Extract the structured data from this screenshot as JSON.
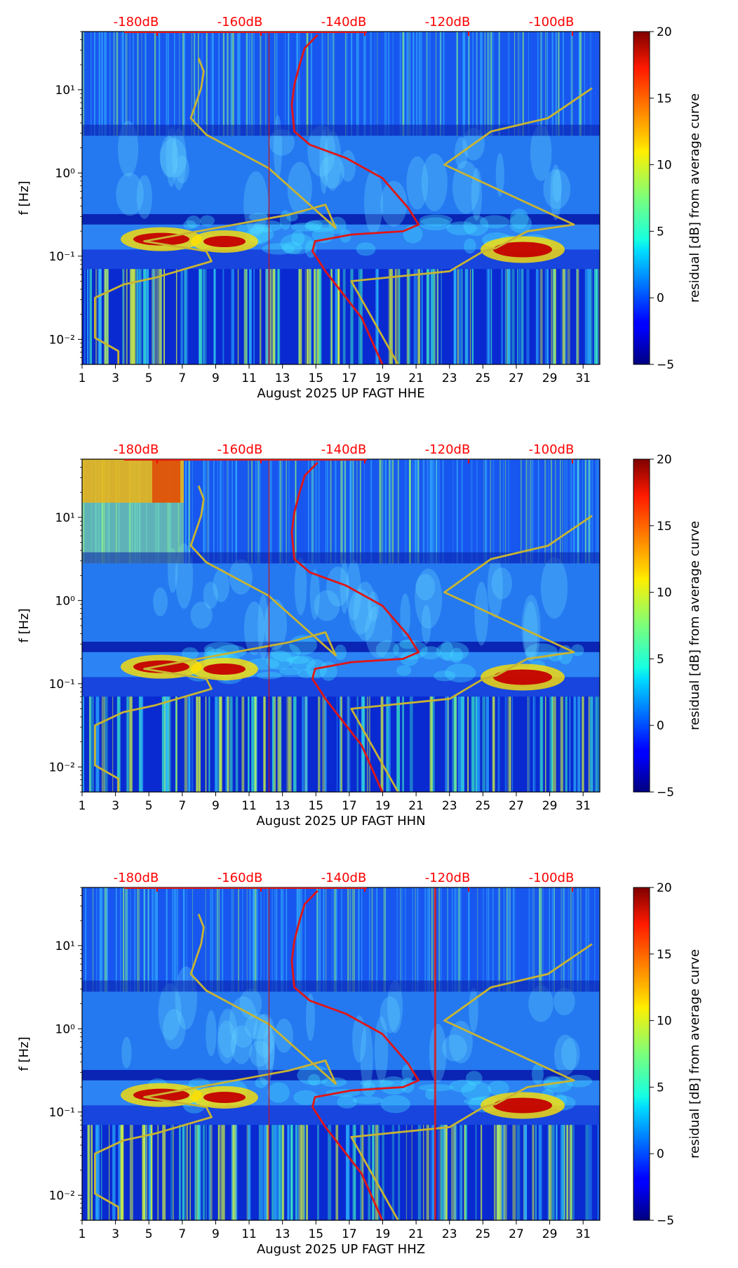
{
  "chart_data": [
    {
      "type": "heatmap",
      "title": "",
      "xlabel": "August 2025 UP FAGT  HHE",
      "ylabel": "f [Hz]",
      "x_ticks": [
        "1",
        "3",
        "5",
        "7",
        "9",
        "11",
        "13",
        "15",
        "17",
        "19",
        "21",
        "23",
        "25",
        "27",
        "29",
        "31"
      ],
      "x_range": [
        1,
        32
      ],
      "y_ticks": [
        "10⁻²",
        "10⁻¹",
        "10⁰",
        "10¹"
      ],
      "y_range_hz": [
        0.005,
        50
      ],
      "top_labels": [
        "-180dB",
        "-160dB",
        "-140dB",
        "-120dB",
        "-100dB"
      ],
      "top_label_color": "#ff0000",
      "colorbar": {
        "label": "residual [dB] from average curve",
        "ticks": [
          "20",
          "15",
          "10",
          "5",
          "0",
          "−5"
        ],
        "range": [
          -5,
          20
        ],
        "colormap": "jet"
      },
      "series": [
        {
          "name": "noise-model-curve",
          "color": "#c8b432"
        },
        {
          "name": "average-psd-curve",
          "color": "#e01515"
        }
      ]
    },
    {
      "type": "heatmap",
      "title": "",
      "xlabel": "August 2025 UP FAGT  HHN",
      "ylabel": "f [Hz]",
      "x_ticks": [
        "1",
        "3",
        "5",
        "7",
        "9",
        "11",
        "13",
        "15",
        "17",
        "19",
        "21",
        "23",
        "25",
        "27",
        "29",
        "31"
      ],
      "x_range": [
        1,
        32
      ],
      "y_ticks": [
        "10⁻²",
        "10⁻¹",
        "10⁰",
        "10¹"
      ],
      "y_range_hz": [
        0.005,
        50
      ],
      "top_labels": [
        "-180dB",
        "-160dB",
        "-140dB",
        "-120dB",
        "-100dB"
      ],
      "top_label_color": "#ff0000",
      "colorbar": {
        "label": "residual [dB] from average curve",
        "ticks": [
          "20",
          "15",
          "10",
          "5",
          "0",
          "−5"
        ],
        "range": [
          -5,
          20
        ],
        "colormap": "jet"
      },
      "series": [
        {
          "name": "noise-model-curve",
          "color": "#c8b432"
        },
        {
          "name": "average-psd-curve",
          "color": "#e01515"
        }
      ]
    },
    {
      "type": "heatmap",
      "title": "",
      "xlabel": "August 2025 UP FAGT  HHZ",
      "ylabel": "f [Hz]",
      "x_ticks": [
        "1",
        "3",
        "5",
        "7",
        "9",
        "11",
        "13",
        "15",
        "17",
        "19",
        "21",
        "23",
        "25",
        "27",
        "29",
        "31"
      ],
      "x_range": [
        1,
        32
      ],
      "y_ticks": [
        "10⁻²",
        "10⁻¹",
        "10⁰",
        "10¹"
      ],
      "y_range_hz": [
        0.005,
        50
      ],
      "top_labels": [
        "-180dB",
        "-160dB",
        "-140dB",
        "-120dB",
        "-100dB"
      ],
      "top_label_color": "#ff0000",
      "colorbar": {
        "label": "residual [dB] from average curve",
        "ticks": [
          "20",
          "15",
          "10",
          "5",
          "0",
          "−5"
        ],
        "range": [
          -5,
          20
        ],
        "colormap": "jet"
      },
      "series": [
        {
          "name": "noise-model-curve",
          "color": "#c8b432"
        },
        {
          "name": "average-psd-curve",
          "color": "#e01515"
        }
      ]
    }
  ]
}
